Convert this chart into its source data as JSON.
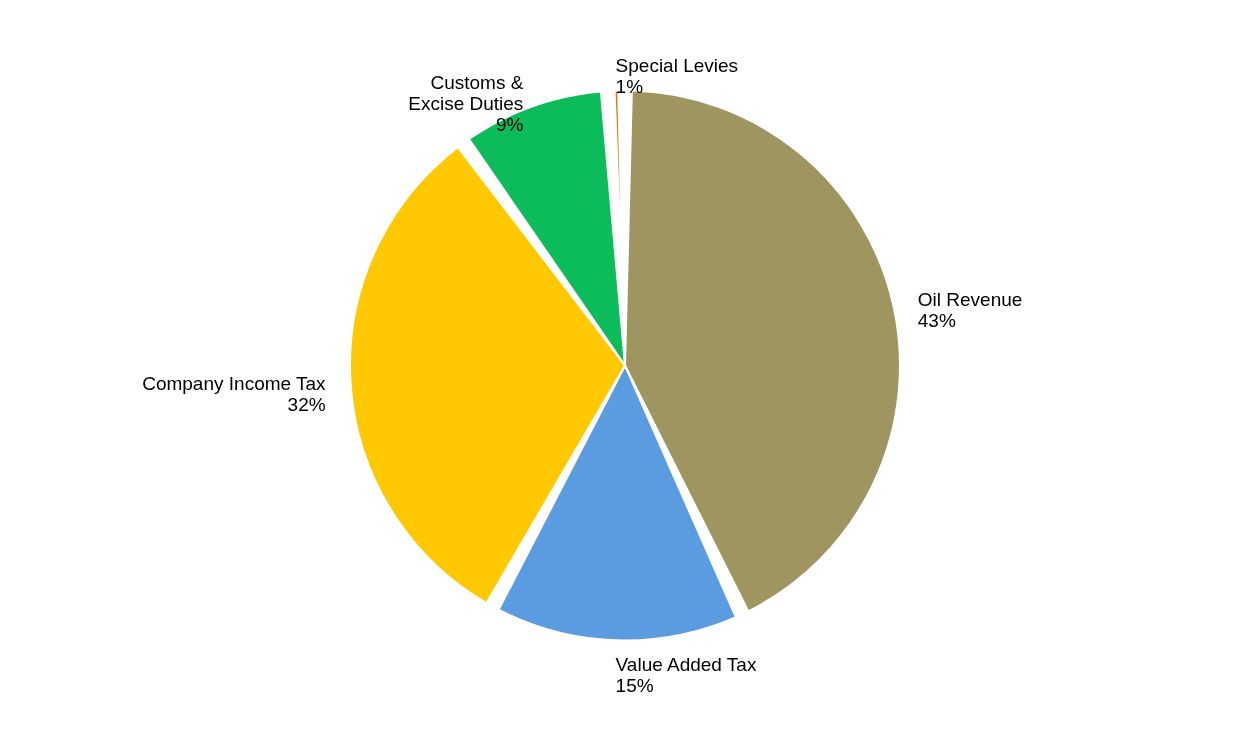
{
  "chart_data": {
    "type": "pie",
    "categories": [
      "Oil Revenue",
      "Value Added Tax",
      "Company Income Tax",
      "Customs & Excise Duties",
      "Special Levies"
    ],
    "values": [
      43,
      15,
      32,
      9,
      1
    ],
    "colors": [
      "#9e9560",
      "#5b9be0",
      "#ffc800",
      "#0cbc5a",
      "#e07010"
    ],
    "value_labels": [
      "43%",
      "15%",
      "32%",
      "9%",
      "1%"
    ],
    "legend": false
  }
}
